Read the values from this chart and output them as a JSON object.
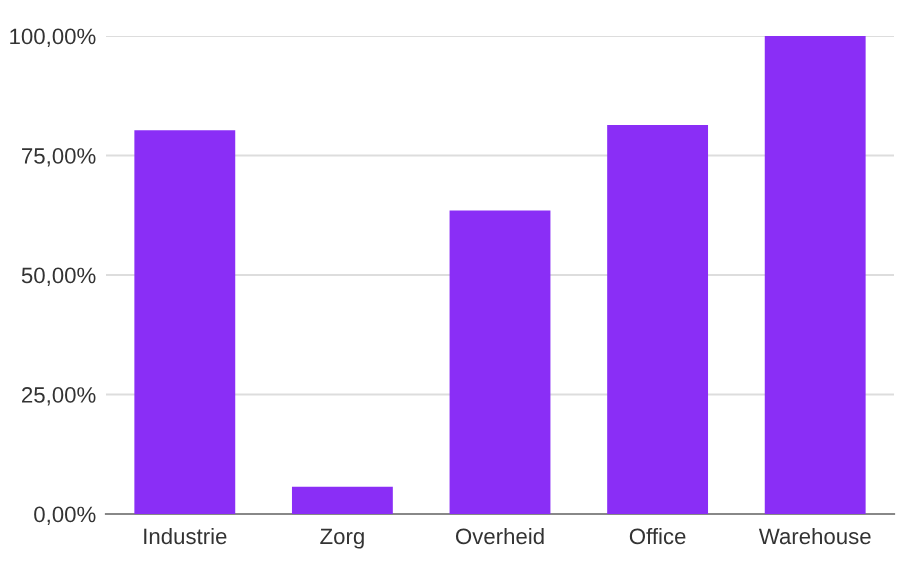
{
  "chart_data": {
    "type": "bar",
    "categories": [
      "Industrie",
      "Zorg",
      "Overheid",
      "Office",
      "Warehouse"
    ],
    "values": [
      80.3,
      5.7,
      63.5,
      81.4,
      100
    ],
    "color": "#8a2ef6",
    "ylim": [
      0,
      100
    ],
    "yticks": [
      {
        "value": 0,
        "label": "0,00%"
      },
      {
        "value": 25,
        "label": "25,00%"
      },
      {
        "value": 50,
        "label": "50,00%"
      },
      {
        "value": 75,
        "label": "75,00%"
      },
      {
        "value": 100,
        "label": "100,00%"
      }
    ],
    "grid": "y"
  }
}
